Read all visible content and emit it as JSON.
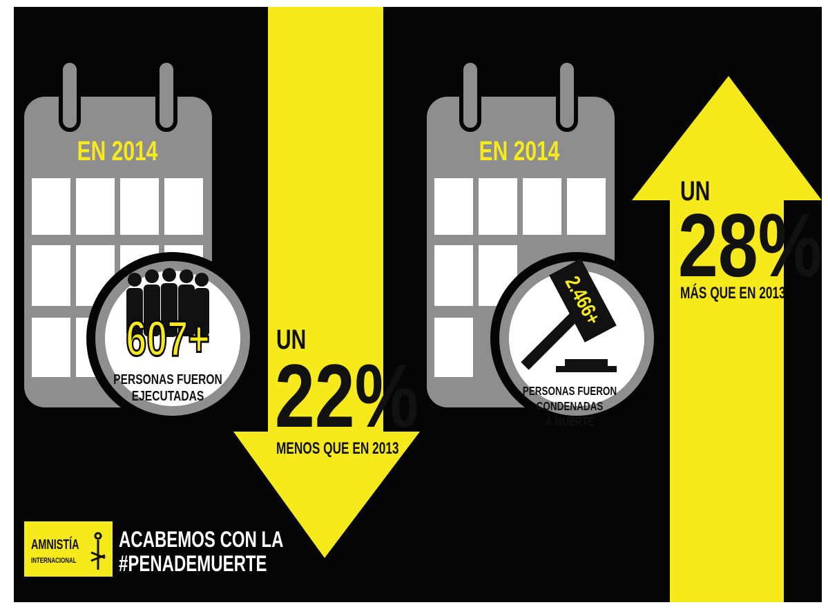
{
  "left": {
    "calendar_label": "EN 2014",
    "figure": "607+",
    "caption": [
      "PERSONAS FUERON",
      "EJECUTADAS"
    ],
    "change_prefix": "UN",
    "change": "22%",
    "change_note": "MENOS QUE EN 2013"
  },
  "right": {
    "calendar_label": "EN 2014",
    "figure": "2.466+",
    "caption": [
      "PERSONAS FUERON",
      "CONDENADAS",
      "A MUERTE"
    ],
    "change_prefix": "UN",
    "change": "28%",
    "change_note": "MÁS QUE EN 2013"
  },
  "footer": {
    "logo": [
      "AMNISTÍA",
      "INTERNACIONAL"
    ],
    "slogan": [
      "ACABEMOS CON LA",
      "#PENADEMUERTE"
    ]
  }
}
